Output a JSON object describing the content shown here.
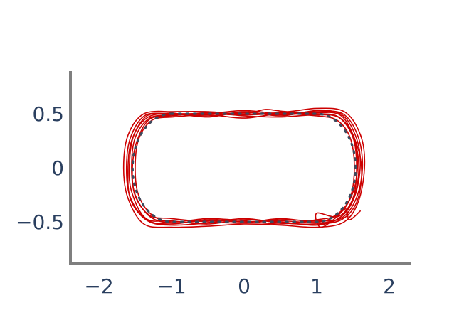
{
  "chart_data": {
    "type": "line",
    "title": "",
    "xlabel": "",
    "ylabel": "",
    "xlim": [
      -2.4,
      2.3
    ],
    "ylim": [
      -0.9,
      0.9
    ],
    "x_ticks": [
      {
        "value": -2,
        "label": "−2"
      },
      {
        "value": -1,
        "label": "−1"
      },
      {
        "value": 0,
        "label": "0"
      },
      {
        "value": 1,
        "label": "1"
      },
      {
        "value": 2,
        "label": "2"
      }
    ],
    "y_ticks": [
      {
        "value": 0.5,
        "label": "0.5"
      },
      {
        "value": 0,
        "label": "0"
      },
      {
        "value": -0.5,
        "label": "−0.5"
      }
    ],
    "grid": false,
    "legend": "none",
    "reference_path": {
      "shape": "stadium",
      "straight_x": [
        -1.0,
        1.0
      ],
      "half_height": 0.5,
      "color": "#3d4a5c",
      "style": "dotted"
    },
    "series_color": "#cc0000",
    "series": [
      {
        "values": [
          [
            -1.0,
            0.49
          ],
          [
            -0.5,
            0.5
          ],
          [
            0.0,
            0.49
          ],
          [
            0.5,
            0.51
          ],
          [
            1.0,
            0.5
          ],
          [
            1.3,
            0.47
          ],
          [
            1.5,
            0.3
          ],
          [
            1.58,
            0.0
          ],
          [
            1.5,
            -0.3
          ],
          [
            1.3,
            -0.47
          ],
          [
            1.0,
            -0.51
          ],
          [
            0.5,
            -0.49
          ],
          [
            0.0,
            -0.5
          ],
          [
            -0.5,
            -0.49
          ],
          [
            -1.0,
            -0.51
          ],
          [
            -1.3,
            -0.45
          ],
          [
            -1.5,
            -0.25
          ],
          [
            -1.55,
            0.0
          ],
          [
            -1.5,
            0.28
          ],
          [
            -1.3,
            0.46
          ],
          [
            -1.0,
            0.49
          ]
        ]
      },
      {
        "values": [
          [
            -1.0,
            0.51
          ],
          [
            -0.5,
            0.47
          ],
          [
            0.0,
            0.52
          ],
          [
            0.5,
            0.48
          ],
          [
            1.0,
            0.53
          ],
          [
            1.35,
            0.49
          ],
          [
            1.55,
            0.27
          ],
          [
            1.6,
            0.02
          ],
          [
            1.52,
            -0.27
          ],
          [
            1.32,
            -0.46
          ],
          [
            1.0,
            -0.53
          ],
          [
            0.5,
            -0.5
          ],
          [
            0.0,
            -0.48
          ],
          [
            -0.5,
            -0.52
          ],
          [
            -1.0,
            -0.49
          ],
          [
            -1.35,
            -0.47
          ],
          [
            -1.55,
            -0.22
          ],
          [
            -1.58,
            0.03
          ],
          [
            -1.52,
            0.3
          ],
          [
            -1.32,
            0.47
          ],
          [
            -1.0,
            0.51
          ]
        ]
      },
      {
        "values": [
          [
            -1.0,
            0.47
          ],
          [
            -0.5,
            0.49
          ],
          [
            0.0,
            0.46
          ],
          [
            0.5,
            0.5
          ],
          [
            1.0,
            0.48
          ],
          [
            1.28,
            0.44
          ],
          [
            1.46,
            0.28
          ],
          [
            1.52,
            0.01
          ],
          [
            1.46,
            -0.28
          ],
          [
            1.26,
            -0.44
          ],
          [
            1.0,
            -0.48
          ],
          [
            0.5,
            -0.52
          ],
          [
            0.0,
            -0.49
          ],
          [
            -0.5,
            -0.47
          ],
          [
            -1.0,
            -0.5
          ],
          [
            -1.28,
            -0.43
          ],
          [
            -1.46,
            -0.24
          ],
          [
            -1.5,
            0.02
          ],
          [
            -1.45,
            0.27
          ],
          [
            -1.27,
            0.44
          ],
          [
            -1.0,
            0.47
          ]
        ]
      },
      {
        "values": [
          [
            -1.0,
            0.52
          ],
          [
            -0.5,
            0.52
          ],
          [
            0.0,
            0.5
          ],
          [
            0.3,
            0.54
          ],
          [
            0.6,
            0.52
          ],
          [
            1.0,
            0.55
          ],
          [
            1.38,
            0.52
          ],
          [
            1.6,
            0.31
          ],
          [
            1.66,
            0.03
          ],
          [
            1.58,
            -0.3
          ],
          [
            1.38,
            -0.5
          ],
          [
            1.0,
            -0.55
          ],
          [
            0.5,
            -0.53
          ],
          [
            0.0,
            -0.52
          ],
          [
            -0.5,
            -0.54
          ],
          [
            -1.0,
            -0.55
          ],
          [
            -1.38,
            -0.52
          ],
          [
            -1.6,
            -0.28
          ],
          [
            -1.66,
            0.0
          ],
          [
            -1.6,
            0.3
          ],
          [
            -1.38,
            0.5
          ],
          [
            -1.0,
            0.52
          ]
        ]
      },
      {
        "values": [
          [
            -1.0,
            0.48
          ],
          [
            -0.5,
            0.51
          ],
          [
            0.0,
            0.48
          ],
          [
            0.5,
            0.47
          ],
          [
            1.0,
            0.49
          ],
          [
            1.32,
            0.46
          ],
          [
            1.52,
            0.25
          ],
          [
            1.56,
            -0.02
          ],
          [
            1.48,
            -0.26
          ],
          [
            1.3,
            -0.43
          ],
          [
            1.0,
            -0.5
          ],
          [
            0.5,
            -0.47
          ],
          [
            0.0,
            -0.51
          ],
          [
            -0.5,
            -0.5
          ],
          [
            -1.0,
            -0.47
          ],
          [
            -1.3,
            -0.44
          ],
          [
            -1.5,
            -0.26
          ],
          [
            -1.54,
            -0.02
          ],
          [
            -1.48,
            0.24
          ],
          [
            -1.3,
            0.45
          ],
          [
            -1.0,
            0.48
          ]
        ]
      },
      {
        "values": [
          [
            -1.0,
            0.5
          ],
          [
            -0.5,
            0.48
          ],
          [
            0.0,
            0.51
          ],
          [
            0.5,
            0.49
          ],
          [
            1.0,
            0.51
          ],
          [
            1.34,
            0.48
          ],
          [
            1.55,
            0.22
          ],
          [
            1.62,
            -0.04
          ],
          [
            1.55,
            -0.32
          ],
          [
            1.34,
            -0.48
          ],
          [
            1.0,
            -0.52
          ],
          [
            0.5,
            -0.51
          ],
          [
            0.0,
            -0.47
          ],
          [
            -0.5,
            -0.51
          ],
          [
            -1.0,
            -0.53
          ],
          [
            -1.33,
            -0.49
          ],
          [
            -1.56,
            -0.3
          ],
          [
            -1.6,
            -0.03
          ],
          [
            -1.55,
            0.25
          ],
          [
            -1.34,
            0.48
          ],
          [
            -1.0,
            0.5
          ]
        ]
      },
      {
        "values": [
          [
            -1.0,
            0.49
          ],
          [
            -0.5,
            0.5
          ],
          [
            0.0,
            0.53
          ],
          [
            0.5,
            0.5
          ],
          [
            1.0,
            0.52
          ],
          [
            1.36,
            0.5
          ],
          [
            1.57,
            0.29
          ],
          [
            1.63,
            0.0
          ],
          [
            1.54,
            -0.29
          ],
          [
            1.33,
            -0.47
          ],
          [
            1.0,
            -0.49
          ],
          [
            0.5,
            -0.48
          ],
          [
            0.0,
            -0.5
          ],
          [
            -0.5,
            -0.48
          ],
          [
            -1.0,
            -0.52
          ],
          [
            -1.34,
            -0.48
          ],
          [
            -1.57,
            -0.27
          ],
          [
            -1.62,
            0.01
          ],
          [
            -1.56,
            0.29
          ],
          [
            -1.35,
            0.49
          ],
          [
            -1.0,
            0.49
          ]
        ]
      },
      {
        "values": [
          [
            -1.0,
            0.5
          ],
          [
            -0.5,
            0.5
          ],
          [
            0.0,
            0.49
          ],
          [
            0.5,
            0.5
          ],
          [
            1.0,
            0.5
          ],
          [
            1.3,
            0.47
          ],
          [
            1.5,
            0.28
          ],
          [
            1.55,
            0.0
          ],
          [
            1.5,
            -0.28
          ],
          [
            1.3,
            -0.45
          ],
          [
            1.0,
            -0.42
          ],
          [
            1.05,
            -0.55
          ],
          [
            1.25,
            -0.47
          ],
          [
            1.4,
            -0.38
          ],
          [
            1.45,
            -0.48
          ],
          [
            1.6,
            -0.4
          ]
        ]
      }
    ]
  }
}
